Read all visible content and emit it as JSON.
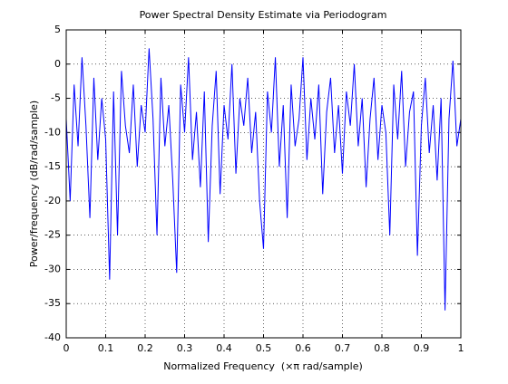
{
  "chart_data": {
    "type": "line",
    "title": "Power Spectral Density Estimate via Periodogram",
    "xlabel": "Normalized Frequency  (×π rad/sample)",
    "ylabel": "Power/frequency (dB/rad/sample)",
    "color": "#0000ff",
    "grid": true,
    "xlim": [
      0,
      1
    ],
    "ylim": [
      -40,
      5
    ],
    "xticks": [
      0,
      0.1,
      0.2,
      0.3,
      0.4,
      0.5,
      0.6,
      0.7,
      0.8,
      0.9,
      1
    ],
    "yticks": [
      -40,
      -35,
      -30,
      -25,
      -20,
      -15,
      -10,
      -5,
      0,
      5
    ],
    "x": [
      0,
      0.01,
      0.02,
      0.03,
      0.04,
      0.05,
      0.06,
      0.07,
      0.08,
      0.09,
      0.1,
      0.11,
      0.12,
      0.13,
      0.14,
      0.15,
      0.16,
      0.17,
      0.18,
      0.19,
      0.2,
      0.21,
      0.22,
      0.23,
      0.24,
      0.25,
      0.26,
      0.27,
      0.28,
      0.29,
      0.3,
      0.31,
      0.32,
      0.33,
      0.34,
      0.35,
      0.36,
      0.37,
      0.38,
      0.39,
      0.4,
      0.41,
      0.42,
      0.43,
      0.44,
      0.45,
      0.46,
      0.47,
      0.48,
      0.49,
      0.5,
      0.51,
      0.52,
      0.53,
      0.54,
      0.55,
      0.56,
      0.57,
      0.58,
      0.59,
      0.6,
      0.61,
      0.62,
      0.63,
      0.64,
      0.65,
      0.66,
      0.67,
      0.68,
      0.69,
      0.7,
      0.71,
      0.72,
      0.73,
      0.74,
      0.75,
      0.76,
      0.77,
      0.78,
      0.79,
      0.8,
      0.81,
      0.82,
      0.83,
      0.84,
      0.85,
      0.86,
      0.87,
      0.88,
      0.89,
      0.9,
      0.91,
      0.92,
      0.93,
      0.94,
      0.95,
      0.96,
      0.97,
      0.98,
      0.99,
      1
    ],
    "values": [
      -8,
      -20,
      -3,
      -12,
      1,
      -9,
      -22.5,
      -2,
      -14,
      -5,
      -11,
      -31.5,
      -4,
      -25,
      -1,
      -9,
      -13,
      -3,
      -15,
      -6,
      -10,
      2.3,
      -8,
      -25,
      -2,
      -12,
      -6,
      -17,
      -30.5,
      -3,
      -10,
      1,
      -14,
      -7,
      -18,
      -4,
      -26,
      -9,
      -1,
      -19,
      -6,
      -11,
      0,
      -16,
      -5,
      -9,
      -2,
      -13,
      -7,
      -20,
      -27,
      -4,
      -10,
      1,
      -15,
      -6,
      -22.5,
      -3,
      -12,
      -8,
      1,
      -14,
      -5,
      -11,
      -3,
      -19,
      -7,
      -2,
      -13,
      -6,
      -16,
      -4,
      -9,
      0,
      -12,
      -5,
      -18,
      -8,
      -2,
      -14,
      -6,
      -10,
      -25,
      -3,
      -11,
      -1,
      -15,
      -7,
      -4,
      -28,
      -9,
      -2,
      -13,
      -6,
      -17,
      -5,
      -36,
      -8,
      0.5,
      -12,
      -8
    ]
  }
}
